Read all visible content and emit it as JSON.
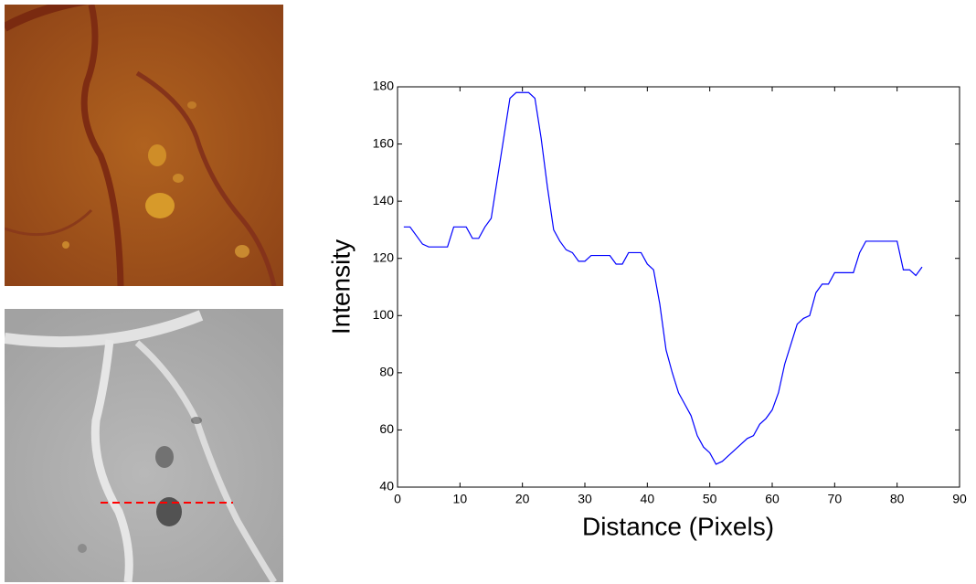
{
  "chart_data": {
    "type": "line",
    "x_label": "Distance (Pixels)",
    "y_label": "Intensity",
    "xlim": [
      0,
      90
    ],
    "ylim": [
      40,
      180
    ],
    "xticks": [
      0,
      10,
      20,
      30,
      40,
      50,
      60,
      70,
      80,
      90
    ],
    "yticks": [
      40,
      60,
      80,
      100,
      120,
      140,
      160,
      180
    ],
    "x": [
      1,
      2,
      3,
      4,
      5,
      6,
      7,
      8,
      9,
      10,
      11,
      12,
      13,
      14,
      15,
      16,
      17,
      18,
      19,
      20,
      21,
      22,
      23,
      24,
      25,
      26,
      27,
      28,
      29,
      30,
      31,
      32,
      33,
      34,
      35,
      36,
      37,
      38,
      39,
      40,
      41,
      42,
      43,
      44,
      45,
      46,
      47,
      48,
      49,
      50,
      51,
      52,
      53,
      54,
      55,
      56,
      57,
      58,
      59,
      60,
      61,
      62,
      63,
      64,
      65,
      66,
      67,
      68,
      69,
      70,
      71,
      72,
      73,
      74,
      75,
      76,
      77,
      78,
      79,
      80,
      81,
      82,
      83,
      84
    ],
    "series": [
      {
        "color": "#0000ff",
        "values": [
          131,
          131,
          128,
          125,
          124,
          124,
          124,
          124,
          131,
          131,
          131,
          127,
          127,
          131,
          134,
          148,
          162,
          176,
          178,
          178,
          178,
          176,
          162,
          145,
          130,
          126,
          123,
          122,
          119,
          119,
          121,
          121,
          121,
          121,
          118,
          118,
          122,
          122,
          122,
          118,
          116,
          104,
          88,
          80,
          73,
          69,
          65,
          58,
          54,
          52,
          48,
          49,
          51,
          53,
          55,
          57,
          58,
          62,
          64,
          67,
          73,
          83,
          90,
          97,
          99,
          100,
          108,
          111,
          111,
          115,
          115,
          115,
          115,
          122,
          126,
          126,
          126,
          126,
          126,
          126,
          116,
          116,
          114,
          117
        ]
      }
    ]
  }
}
